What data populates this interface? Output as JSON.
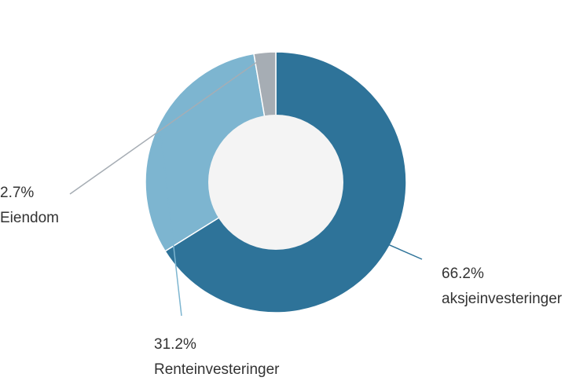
{
  "chart_data": {
    "type": "pie",
    "variant": "donut",
    "title": "",
    "slices": [
      {
        "label": "aksjeinvesteringer",
        "percent_label": "66.2%",
        "value": 66.2,
        "color": "#2e7399"
      },
      {
        "label": "Renteinvesteringer",
        "percent_label": "31.2%",
        "value": 31.2,
        "color": "#7db5d0"
      },
      {
        "label": "Eiendom",
        "percent_label": "2.7%",
        "value": 2.7,
        "color": "#a6adb4"
      }
    ],
    "hole_color": "#f4f4f4",
    "legend": "none",
    "data_labels": "outside"
  }
}
